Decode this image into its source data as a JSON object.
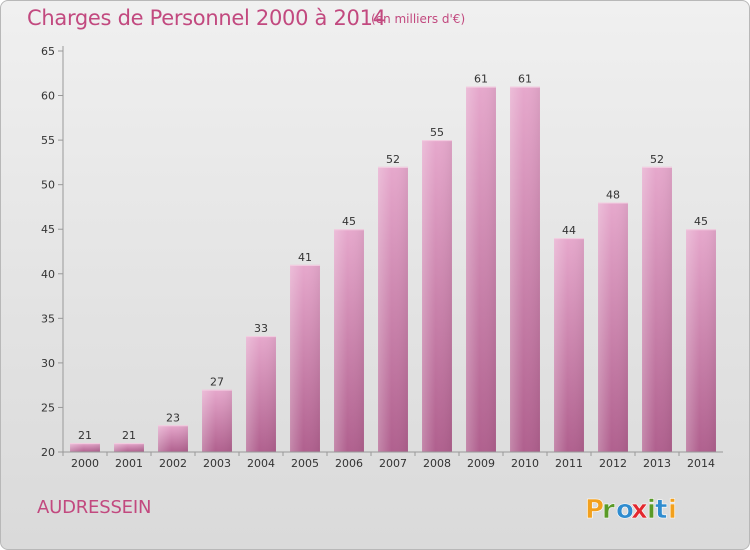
{
  "chart_data": {
    "type": "bar",
    "title": "Charges de Personnel 2000 à 2014",
    "subtitle": "(en milliers d'€)",
    "categories": [
      "2000",
      "2001",
      "2002",
      "2003",
      "2004",
      "2005",
      "2006",
      "2007",
      "2008",
      "2009",
      "2010",
      "2011",
      "2012",
      "2013",
      "2014"
    ],
    "values": [
      21,
      21,
      23,
      27,
      33,
      41,
      45,
      52,
      55,
      61,
      61,
      44,
      48,
      52,
      45
    ],
    "xlabel": "",
    "ylabel": "",
    "ylim": [
      20,
      65
    ],
    "yticks": [
      20,
      25,
      30,
      35,
      40,
      45,
      50,
      55,
      60,
      65
    ],
    "grid": false,
    "data_labels": true,
    "colors": {
      "bar": "#c46c9e",
      "bar_light": "#e6a8cc",
      "bar_dark": "#b0608e",
      "axis": "#999999",
      "text": "#333333"
    }
  },
  "commune": "AUDRESSEIN",
  "logo": {
    "text": "Proxiti",
    "letters": [
      {
        "ch": "P",
        "color": "#f2a01d"
      },
      {
        "ch": "r",
        "color": "#5a9a27"
      },
      {
        "ch": "o",
        "color": "#2f8ccf"
      },
      {
        "ch": "x",
        "color": "#e2282f"
      },
      {
        "ch": "i",
        "color": "#5a9a27"
      },
      {
        "ch": "t",
        "color": "#2f8ccf"
      },
      {
        "ch": "i",
        "color": "#f2a01d"
      }
    ]
  }
}
